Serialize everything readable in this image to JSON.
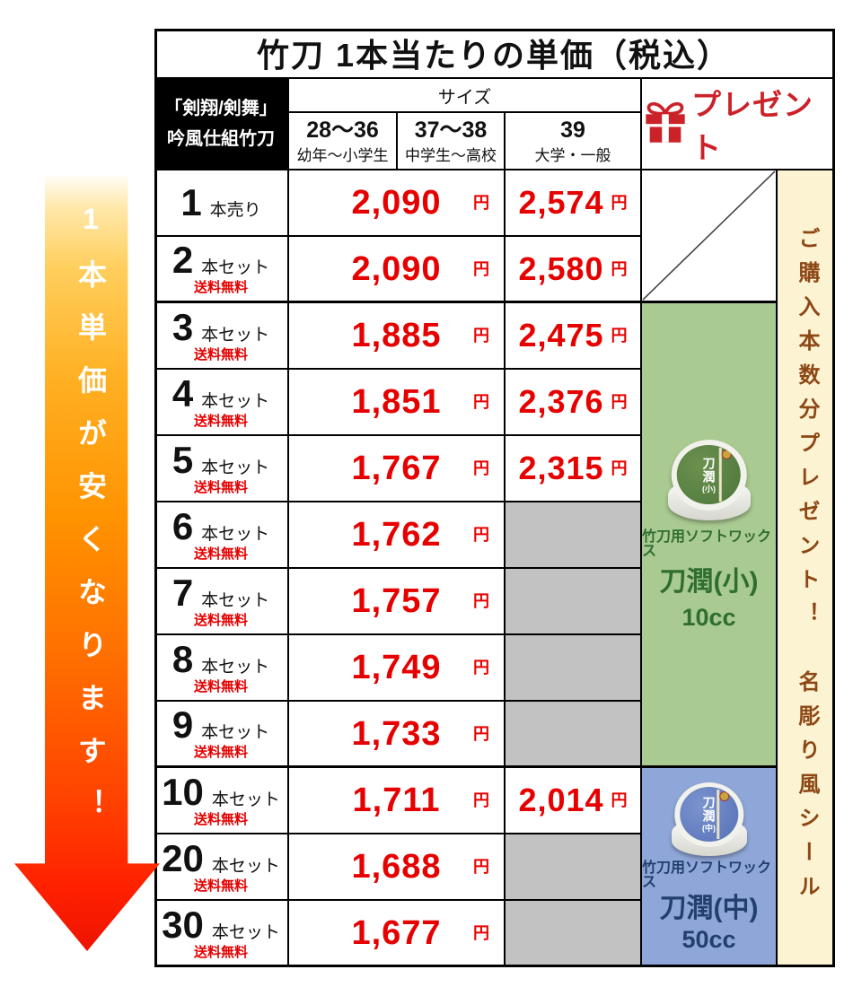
{
  "title": "竹刀 1本当たりの単価（税込）",
  "header": {
    "product_label_line1": "「剣翔/剣舞」",
    "product_label_line2": "吟風仕組竹刀",
    "size_header": "サイズ",
    "size_columns": [
      {
        "range": "28〜36",
        "audience": "幼年〜小学生"
      },
      {
        "range": "37〜38",
        "audience": "中学生〜高校"
      },
      {
        "range": "39",
        "audience": "大学・一般"
      }
    ],
    "present_label": "プレゼント"
  },
  "yen": "円",
  "rows": [
    {
      "qty": "1",
      "unit": "本売り",
      "shipping": "",
      "price_28_38": "2,090",
      "price_39": "2,574"
    },
    {
      "qty": "2",
      "unit": "本セット",
      "shipping": "送料無料",
      "price_28_38": "2,090",
      "price_39": "2,580"
    },
    {
      "qty": "3",
      "unit": "本セット",
      "shipping": "送料無料",
      "price_28_38": "1,885",
      "price_39": "2,475"
    },
    {
      "qty": "4",
      "unit": "本セット",
      "shipping": "送料無料",
      "price_28_38": "1,851",
      "price_39": "2,376"
    },
    {
      "qty": "5",
      "unit": "本セット",
      "shipping": "送料無料",
      "price_28_38": "1,767",
      "price_39": "2,315"
    },
    {
      "qty": "6",
      "unit": "本セット",
      "shipping": "送料無料",
      "price_28_38": "1,762",
      "price_39": null
    },
    {
      "qty": "7",
      "unit": "本セット",
      "shipping": "送料無料",
      "price_28_38": "1,757",
      "price_39": null
    },
    {
      "qty": "8",
      "unit": "本セット",
      "shipping": "送料無料",
      "price_28_38": "1,749",
      "price_39": null
    },
    {
      "qty": "9",
      "unit": "本セット",
      "shipping": "送料無料",
      "price_28_38": "1,733",
      "price_39": null
    },
    {
      "qty": "10",
      "unit": "本セット",
      "shipping": "送料無料",
      "price_28_38": "1,711",
      "price_39": "2,014"
    },
    {
      "qty": "20",
      "unit": "本セット",
      "shipping": "送料無料",
      "price_28_38": "1,688",
      "price_39": null
    },
    {
      "qty": "30",
      "unit": "本セット",
      "shipping": "送料無料",
      "price_28_38": "1,677",
      "price_39": null
    }
  ],
  "left_banner": {
    "text": "1本単価が安くなります！"
  },
  "right_banner": {
    "text": "ご購入本数分プレゼント！　名彫り風シール"
  },
  "gifts": {
    "small": {
      "category": "竹刀用ソフトワックス",
      "name": "刀潤(小)",
      "volume": "10cc",
      "label_name": "刀潤",
      "label_size": "(小)"
    },
    "medium": {
      "category": "竹刀用ソフトワックス",
      "name": "刀潤(中)",
      "volume": "50cc",
      "label_name": "刀潤",
      "label_size": "(中)"
    }
  },
  "colors": {
    "price_red": "#e60000",
    "present_red": "#cb2229",
    "green_bg": "#a9ca90",
    "green_text": "#2f6e30",
    "blue_bg": "#8fa7d8",
    "blue_text": "#223f6e",
    "cream_bg": "#fcf3d2",
    "brown_text": "#8c4715",
    "grey_bg": "#c2c2c2"
  }
}
